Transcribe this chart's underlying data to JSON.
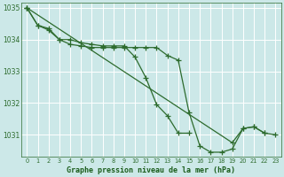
{
  "background_color": "#cce8e8",
  "plot_bg_color": "#cce8e8",
  "grid_color": "#ffffff",
  "line_color": "#2d6b2d",
  "xlabel": "Graphe pression niveau de la mer (hPa)",
  "xlabel_color": "#1a5c1a",
  "tick_color": "#2d6b2d",
  "ylim": [
    1030.3,
    1035.15
  ],
  "yticks": [
    1031,
    1032,
    1033,
    1034,
    1035
  ],
  "xticks": [
    0,
    1,
    2,
    3,
    4,
    5,
    6,
    7,
    8,
    9,
    10,
    11,
    12,
    13,
    14,
    15,
    16,
    17,
    18,
    19,
    20,
    21,
    22,
    23
  ],
  "series1": [
    1035.0,
    1034.45,
    1034.35,
    1034.0,
    1033.85,
    1033.8,
    1033.75,
    1033.75,
    1033.75,
    1033.75,
    1033.75,
    1033.75,
    1033.75,
    1033.5,
    1033.35,
    1031.7,
    1030.65,
    1030.45,
    1030.45,
    1030.55,
    1031.2,
    1031.25,
    1031.05,
    null
  ],
  "series2": [
    1035.0,
    1034.45,
    1034.3,
    1034.0,
    1034.0,
    1033.9,
    1033.85,
    1033.8,
    1033.8,
    1033.8,
    1033.45,
    1032.8,
    1031.95,
    1031.6,
    1031.05,
    1031.05,
    null,
    null,
    null,
    null,
    null,
    null,
    null,
    null
  ],
  "series3_x": [
    0,
    19,
    20,
    21,
    22,
    23
  ],
  "series3_y": [
    1035.0,
    1030.75,
    1031.2,
    1031.25,
    1031.05,
    1031.0
  ]
}
